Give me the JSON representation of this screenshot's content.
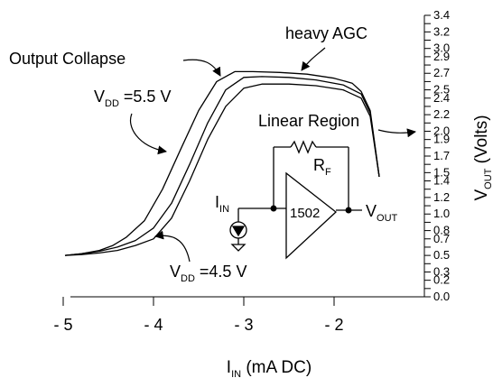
{
  "chart_data": {
    "type": "line",
    "title": "",
    "xlabel": {
      "main": "I",
      "sub": "IN",
      "rest": " (mA DC)"
    },
    "ylabel": {
      "main": "V",
      "sub": "OUT",
      "rest": " (Volts)"
    },
    "xlim": [
      -5.0,
      -1.0
    ],
    "ylim": [
      0.0,
      3.4
    ],
    "x_ticks": [
      {
        "value": -5,
        "label": "- 5"
      },
      {
        "value": -4,
        "label": "- 4"
      },
      {
        "value": -3,
        "label": "- 3"
      },
      {
        "value": -2,
        "label": "- 2"
      }
    ],
    "y_ticks": [
      "0.0",
      "0.1",
      "0.2",
      "0.3",
      "0.4",
      "0.5",
      "0.6",
      "0.7",
      "0.8",
      "0.9",
      "1.0",
      "1.1",
      "1.2",
      "1.3",
      "1.4",
      "1.5",
      "1.6",
      "1.7",
      "1.8",
      "1.9",
      "2.0",
      "2.1",
      "2.2",
      "2.3",
      "2.4",
      "2.5",
      "2.6",
      "2.7",
      "2.8",
      "2.9",
      "3.0",
      "3.1",
      "3.2",
      "3.3",
      "3.4"
    ],
    "y_label_values": [
      "0.0",
      "0.2",
      "0.3",
      "0.5",
      "0.7",
      "0.8",
      "1.0",
      "1.2",
      "1.4",
      "1.5",
      "1.7",
      "1.9",
      "2.0",
      "2.2",
      "2.4",
      "2.5",
      "2.7",
      "2.9",
      "3.0",
      "3.2",
      "3.4"
    ],
    "series": [
      {
        "x": [
          -4.98,
          -4.8,
          -4.6,
          -4.45,
          -4.3,
          -4.1,
          -3.9,
          -3.7,
          -3.5,
          -3.3,
          -3.1,
          -2.9,
          -2.6,
          -2.3,
          -2.0,
          -1.8,
          -1.7,
          -1.6,
          -1.5
        ],
        "y": [
          0.5,
          0.52,
          0.56,
          0.62,
          0.72,
          0.92,
          1.3,
          1.78,
          2.25,
          2.6,
          2.72,
          2.72,
          2.71,
          2.69,
          2.64,
          2.58,
          2.48,
          2.25,
          1.45
        ]
      },
      {
        "x": [
          -4.98,
          -4.8,
          -4.6,
          -4.4,
          -4.2,
          -4.0,
          -3.8,
          -3.6,
          -3.4,
          -3.2,
          -3.0,
          -2.8,
          -2.5,
          -2.2,
          -1.9,
          -1.7,
          -1.6,
          -1.5
        ],
        "y": [
          0.5,
          0.52,
          0.55,
          0.6,
          0.68,
          0.83,
          1.13,
          1.6,
          2.1,
          2.5,
          2.65,
          2.66,
          2.65,
          2.62,
          2.56,
          2.45,
          2.22,
          1.45
        ]
      },
      {
        "x": [
          -4.98,
          -4.8,
          -4.6,
          -4.4,
          -4.2,
          -4.0,
          -3.8,
          -3.6,
          -3.4,
          -3.2,
          -3.0,
          -2.8,
          -2.5,
          -2.2,
          -1.9,
          -1.7,
          -1.6,
          -1.5
        ],
        "y": [
          0.5,
          0.51,
          0.53,
          0.56,
          0.62,
          0.7,
          0.95,
          1.4,
          1.9,
          2.3,
          2.52,
          2.57,
          2.57,
          2.55,
          2.5,
          2.4,
          2.18,
          1.45
        ]
      }
    ],
    "annotations": {
      "output_collapse": "Output Collapse",
      "heavy_agc": "heavy AGC",
      "linear_region": "Linear Region",
      "vdd_high": {
        "main": "V",
        "sub": "DD",
        "rest": " =5.5 V"
      },
      "vdd_low": {
        "main": "V",
        "sub": "DD",
        "rest": " =4.5 V"
      }
    },
    "circuit": {
      "amp_label": "1502",
      "rf": {
        "main": "R",
        "sub": "F"
      },
      "iin": {
        "main": "I",
        "sub": "IN"
      },
      "vout": {
        "main": "V",
        "sub": "OUT"
      }
    },
    "grid": false,
    "line_color": "#000000"
  }
}
